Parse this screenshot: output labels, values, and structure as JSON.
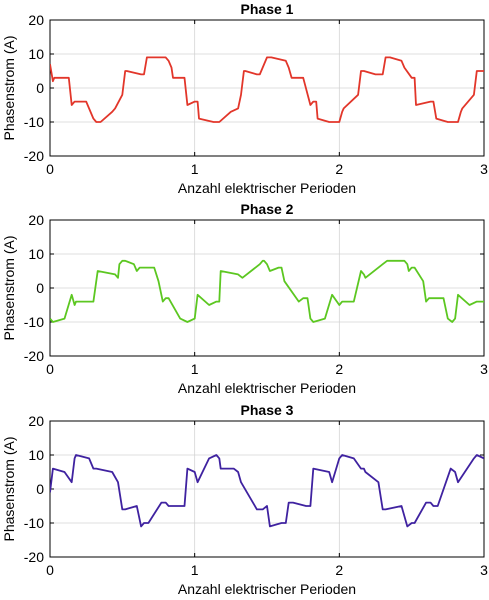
{
  "chart_data": [
    {
      "type": "line",
      "title": "Phase 1",
      "xlabel": "Anzahl elektrischer Perioden",
      "ylabel": "Phasenstrom (A)",
      "xlim": [
        0,
        3
      ],
      "ylim": [
        -20,
        20
      ],
      "xticks": [
        "0",
        "1",
        "2",
        "3"
      ],
      "yticks": [
        "20",
        "10",
        "0",
        "-10",
        "-20"
      ],
      "grid": true,
      "series": [
        {
          "color": "#e2362a",
          "x": [
            0,
            0.02,
            0.03,
            0.13,
            0.15,
            0.17,
            0.25,
            0.3,
            0.32,
            0.34,
            0.35,
            0.43,
            0.45,
            0.5,
            0.52,
            0.53,
            0.63,
            0.65,
            0.67,
            0.75,
            0.8,
            0.82,
            0.84,
            0.85,
            0.93,
            0.95,
            1.0,
            1.02,
            1.03,
            1.13,
            1.15,
            1.17,
            1.25,
            1.3,
            1.32,
            1.34,
            1.35,
            1.43,
            1.45,
            1.5,
            1.52,
            1.53,
            1.63,
            1.65,
            1.67,
            1.75,
            1.8,
            1.82,
            1.84,
            1.85,
            1.93,
            1.95,
            2.0,
            2.02,
            2.03,
            2.13,
            2.15,
            2.17,
            2.25,
            2.3,
            2.32,
            2.34,
            2.35,
            2.43,
            2.45,
            2.5,
            2.52,
            2.53,
            2.63,
            2.65,
            2.67,
            2.75,
            2.8,
            2.82,
            2.84,
            2.85,
            2.93,
            2.95,
            3.0
          ],
          "y": [
            7,
            2,
            3,
            3,
            -5,
            -4,
            -4,
            -9,
            -10,
            -10,
            -10,
            -7,
            -6,
            -2,
            5,
            5,
            4,
            4,
            9,
            9,
            9,
            8,
            6,
            3,
            3,
            -5,
            -4,
            -4,
            -9,
            -10,
            -10,
            -10,
            -7,
            -6,
            -2,
            5,
            5,
            4,
            4,
            9,
            9,
            9,
            8,
            6,
            3,
            3,
            -5,
            -4,
            -4,
            -9,
            -10,
            -10,
            -10,
            -7,
            -6,
            -2,
            5,
            5,
            4,
            4,
            9,
            9,
            9,
            8,
            6,
            3,
            3,
            -5,
            -4,
            -4,
            -9,
            -10,
            -10,
            -10,
            -7,
            -6,
            -2,
            5,
            5
          ]
        }
      ]
    },
    {
      "type": "line",
      "title": "Phase 2",
      "xlabel": "Anzahl elektrischer Perioden",
      "ylabel": "Phasenstrom (A)",
      "xlim": [
        0,
        3
      ],
      "ylim": [
        -20,
        20
      ],
      "xticks": [
        "0",
        "1",
        "2",
        "3"
      ],
      "yticks": [
        "20",
        "10",
        "0",
        "-10",
        "-20"
      ],
      "grid": true,
      "series": [
        {
          "color": "#5cc721",
          "x": [
            0,
            0.02,
            0.1,
            0.15,
            0.17,
            0.18,
            0.3,
            0.33,
            0.45,
            0.47,
            0.48,
            0.5,
            0.52,
            0.58,
            0.6,
            0.62,
            0.72,
            0.75,
            0.78,
            0.8,
            0.82,
            0.9,
            0.95,
            1.0,
            1.02,
            1.1,
            1.15,
            1.17,
            1.18,
            1.3,
            1.33,
            1.45,
            1.47,
            1.48,
            1.5,
            1.52,
            1.58,
            1.6,
            1.62,
            1.72,
            1.75,
            1.78,
            1.8,
            1.82,
            1.9,
            1.95,
            2.0,
            2.02,
            2.1,
            2.15,
            2.17,
            2.18,
            2.3,
            2.33,
            2.45,
            2.47,
            2.48,
            2.5,
            2.52,
            2.58,
            2.6,
            2.62,
            2.72,
            2.75,
            2.78,
            2.8,
            2.82,
            2.9,
            2.95,
            3.0
          ],
          "y": [
            -9,
            -10,
            -9,
            -2,
            -5,
            -4,
            -4,
            5,
            4,
            3,
            7,
            8,
            8,
            7,
            5,
            6,
            6,
            2,
            -4,
            -3,
            -3,
            -9,
            -10,
            -9,
            -2,
            -5,
            -4,
            -4,
            5,
            4,
            3,
            7,
            8,
            8,
            7,
            5,
            6,
            6,
            2,
            -4,
            -3,
            -3,
            -9,
            -10,
            -9,
            -2,
            -5,
            -4,
            -4,
            5,
            4,
            3,
            7,
            8,
            8,
            7,
            5,
            6,
            6,
            2,
            -4,
            -3,
            -3,
            -9,
            -10,
            -9,
            -2,
            -5,
            -4,
            -4
          ]
        }
      ]
    },
    {
      "type": "line",
      "title": "Phase 3",
      "xlabel": "Anzahl elektrischer Perioden",
      "ylabel": "Phasenstrom (A)",
      "xlim": [
        0,
        3
      ],
      "ylim": [
        -20,
        20
      ],
      "xticks": [
        "0",
        "1",
        "2",
        "3"
      ],
      "yticks": [
        "20",
        "10",
        "0",
        "-10",
        "-20"
      ],
      "grid": true,
      "series": [
        {
          "color": "#3f22a0",
          "x": [
            0,
            0.02,
            0.1,
            0.15,
            0.17,
            0.18,
            0.27,
            0.3,
            0.32,
            0.43,
            0.47,
            0.5,
            0.52,
            0.6,
            0.63,
            0.65,
            0.68,
            0.77,
            0.8,
            0.82,
            0.93,
            0.95,
            1.0,
            1.02,
            1.1,
            1.15,
            1.17,
            1.18,
            1.27,
            1.3,
            1.32,
            1.43,
            1.47,
            1.5,
            1.52,
            1.6,
            1.63,
            1.65,
            1.68,
            1.77,
            1.8,
            1.82,
            1.93,
            1.95,
            2.0,
            2.02,
            2.1,
            2.15,
            2.17,
            2.18,
            2.27,
            2.3,
            2.32,
            2.43,
            2.47,
            2.5,
            2.52,
            2.6,
            2.63,
            2.65,
            2.68,
            2.77,
            2.8,
            2.82,
            2.93,
            2.95,
            3.0
          ],
          "y": [
            -1,
            6,
            5,
            2,
            9,
            10,
            9,
            6,
            6,
            5,
            2,
            -6,
            -6,
            -5,
            -11,
            -10,
            -10,
            -4,
            -4,
            -5,
            -5,
            6,
            5,
            2,
            9,
            10,
            9,
            6,
            6,
            5,
            2,
            -6,
            -6,
            -5,
            -11,
            -10,
            -10,
            -4,
            -4,
            -5,
            -5,
            6,
            5,
            2,
            9,
            10,
            9,
            6,
            6,
            5,
            2,
            -6,
            -6,
            -5,
            -11,
            -10,
            -10,
            -4,
            -4,
            -5,
            -5,
            6,
            5,
            2,
            9,
            10,
            9
          ]
        }
      ]
    }
  ]
}
